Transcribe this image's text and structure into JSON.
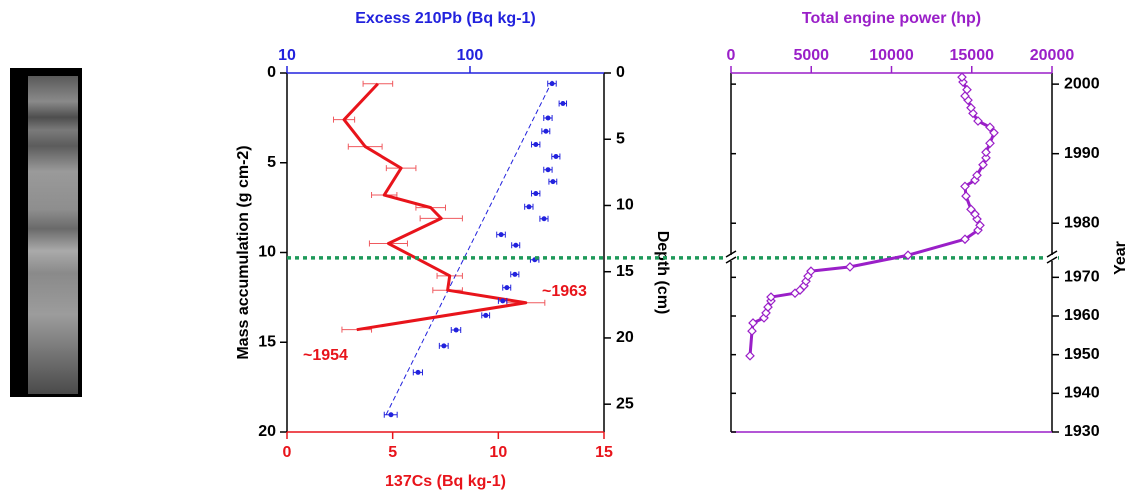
{
  "chart_data": [
    {
      "type": "profile",
      "title": "Excess 210Pb (Bq kg-1)",
      "xlabel": "137Cs (Bq kg-1)",
      "ylabel": "Mass accumulation (g cm-2)",
      "y2label": "Depth (cm)",
      "xlim": [
        0,
        15
      ],
      "xticks": [
        0,
        5,
        10,
        15
      ],
      "ylim": [
        0,
        20
      ],
      "yticks": [
        0,
        5,
        10,
        15,
        20
      ],
      "x2lim": [
        10,
        540
      ],
      "x2ticks": [
        10,
        100
      ],
      "x2scale": "log",
      "y2lim": [
        0,
        27.1
      ],
      "y2ticks": [
        0,
        5,
        10,
        15,
        20,
        25
      ],
      "series": [
        {
          "color": "#e8141b",
          "x": [
            4.3,
            2.7,
            3.7,
            5.4,
            4.6,
            6.8,
            7.3,
            4.8,
            7.7,
            7.6,
            11.3,
            3.3
          ],
          "xerr": [
            0.7,
            0.5,
            0.8,
            0.7,
            0.6,
            0.7,
            1.0,
            0.9,
            0.6,
            0.7,
            0.9,
            0.7
          ],
          "y": [
            0.6,
            2.6,
            4.1,
            5.3,
            6.8,
            7.5,
            8.1,
            9.5,
            11.3,
            12.1,
            12.8,
            14.3
          ]
        },
        {
          "color": "#2222dd",
          "axis": "x2",
          "x": [
            281,
            322,
            267,
            260,
            229,
            295,
            267,
            284,
            229,
            210,
            254,
            148,
            178,
            226,
            176,
            159,
            151,
            122,
            84,
            72,
            52,
            37
          ],
          "xerr": [
            15,
            15,
            14,
            13,
            12,
            15,
            14,
            14,
            12,
            11,
            13,
            8,
            9,
            12,
            9,
            8,
            8,
            6,
            5,
            4,
            3,
            3
          ],
          "y": [
            0.8,
            2.3,
            3.4,
            4.4,
            5.4,
            6.3,
            7.3,
            8.2,
            9.1,
            10.1,
            11.0,
            12.2,
            13.0,
            14.1,
            15.2,
            16.2,
            17.2,
            18.3,
            19.4,
            20.6,
            22.6,
            25.8
          ]
        }
      ],
      "fit": {
        "color": "#2222dd",
        "x": [
          34.8,
          284
        ],
        "y": [
          25.8,
          0.5
        ]
      },
      "annotations": [
        "~1963",
        "~1954"
      ],
      "hline": 10.3,
      "hline_color": "#1e9a5a"
    },
    {
      "type": "line",
      "title": "Total engine power (hp)",
      "ylabel": "Year",
      "color": "#9a1fc8",
      "xlim": [
        0,
        20000
      ],
      "xticks": [
        0,
        5000,
        10000,
        15000,
        20000
      ],
      "ylim": [
        1930,
        2001.6
      ],
      "ybreak": 1975,
      "yticks": [
        1930,
        1940,
        1950,
        1960,
        1970,
        1980,
        1990,
        2000
      ],
      "x": [
        1184,
        1308,
        1371,
        2056,
        2181,
        2305,
        2492,
        2492,
        3988,
        4299,
        4548,
        4673,
        4798,
        4984,
        7414,
        11028,
        14579,
        15389,
        15514,
        15327,
        15202,
        14953,
        14642,
        14579,
        15202,
        15327,
        15701,
        15888,
        15888,
        16137,
        16386,
        16137,
        15389,
        15078,
        14953,
        14766,
        14579,
        14704,
        14455,
        14392
      ],
      "y": [
        1949.7,
        1956.1,
        1958.2,
        1959.5,
        1960.8,
        1962.3,
        1963.9,
        1964.9,
        1965.9,
        1966.7,
        1967.8,
        1969.0,
        1970.3,
        1971.6,
        1972.7,
        1975.4,
        1977.7,
        1979.0,
        1979.7,
        1980.6,
        1981.3,
        1982.0,
        1983.9,
        1985.3,
        1986.2,
        1986.9,
        1988.4,
        1989.4,
        1990.2,
        1991.5,
        1993.0,
        1993.8,
        1994.7,
        1995.8,
        1996.6,
        1997.7,
        1998.3,
        1999.2,
        2000.3,
        2001.0
      ]
    }
  ]
}
